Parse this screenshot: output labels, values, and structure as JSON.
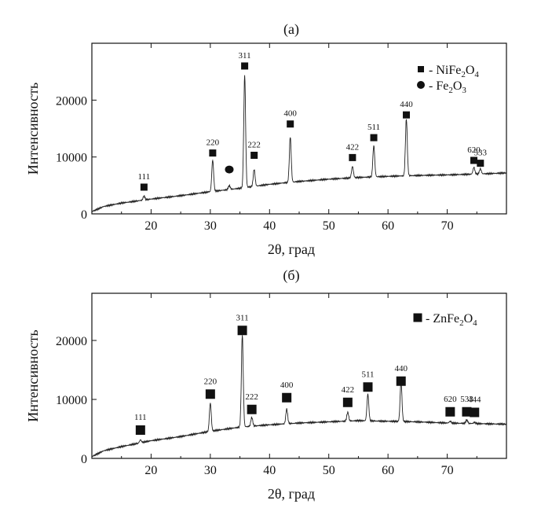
{
  "chart_data": [
    {
      "type": "line",
      "panel_label": "(a)",
      "xlabel": "2θ, град",
      "ylabel": "Интенсивность",
      "xlim": [
        10,
        80
      ],
      "ylim": [
        0,
        30000
      ],
      "x_ticks": [
        20,
        30,
        40,
        50,
        60,
        70
      ],
      "y_ticks": [
        0,
        10000,
        20000
      ],
      "legend": [
        {
          "marker": "square",
          "text": "- NiFe",
          "sub1": "2",
          "text2": "O",
          "sub2": "4"
        },
        {
          "marker": "circle",
          "text": "- Fe",
          "sub1": "2",
          "text2": "O",
          "sub2": "3"
        }
      ],
      "legend_position": "top-right",
      "background": [
        [
          10,
          400
        ],
        [
          12,
          1300
        ],
        [
          15,
          1900
        ],
        [
          20,
          2600
        ],
        [
          25,
          3200
        ],
        [
          30,
          3900
        ],
        [
          35,
          4500
        ],
        [
          40,
          5200
        ],
        [
          45,
          5700
        ],
        [
          50,
          6100
        ],
        [
          55,
          6400
        ],
        [
          60,
          6600
        ],
        [
          65,
          6750
        ],
        [
          70,
          6850
        ],
        [
          75,
          7000
        ],
        [
          80,
          7200
        ]
      ],
      "peaks": [
        {
          "x": 18.8,
          "height": 700,
          "label": "111",
          "marker": "square",
          "marker_y": 4700
        },
        {
          "x": 30.4,
          "height": 5500,
          "label": "220",
          "marker": "square",
          "marker_y": 10700
        },
        {
          "x": 33.2,
          "height": 700,
          "label": "",
          "marker": "circle",
          "marker_y": 7800
        },
        {
          "x": 35.8,
          "height": 19700,
          "label": "311",
          "marker": "square",
          "marker_y": 26000
        },
        {
          "x": 37.4,
          "height": 3000,
          "label": "222",
          "marker": "square",
          "marker_y": 10300
        },
        {
          "x": 43.5,
          "height": 8000,
          "label": "400",
          "marker": "square",
          "marker_y": 15800
        },
        {
          "x": 54.0,
          "height": 2000,
          "label": "422",
          "marker": "square",
          "marker_y": 9900
        },
        {
          "x": 57.6,
          "height": 5500,
          "label": "511",
          "marker": "square",
          "marker_y": 13400
        },
        {
          "x": 63.1,
          "height": 10000,
          "label": "440",
          "marker": "square",
          "marker_y": 17400
        },
        {
          "x": 74.5,
          "height": 1200,
          "label": "620",
          "marker": "square",
          "marker_y": 9400
        },
        {
          "x": 75.6,
          "height": 900,
          "label": "533",
          "marker": "square",
          "marker_y": 8900
        }
      ]
    },
    {
      "type": "line",
      "panel_label": "(б)",
      "xlabel": "2θ, град",
      "ylabel": "Интенсивность",
      "xlim": [
        10,
        80
      ],
      "ylim": [
        0,
        28000
      ],
      "x_ticks": [
        20,
        30,
        40,
        50,
        60,
        70
      ],
      "y_ticks": [
        0,
        10000,
        20000
      ],
      "legend": [
        {
          "marker": "square",
          "text": "- ZnFe",
          "sub1": "2",
          "text2": "O",
          "sub2": "4"
        }
      ],
      "legend_position": "top-right",
      "background": [
        [
          10,
          300
        ],
        [
          12,
          1300
        ],
        [
          15,
          2000
        ],
        [
          18,
          2600
        ],
        [
          20,
          3000
        ],
        [
          25,
          3700
        ],
        [
          30,
          4600
        ],
        [
          35,
          5300
        ],
        [
          40,
          5700
        ],
        [
          45,
          6000
        ],
        [
          50,
          6200
        ],
        [
          55,
          6400
        ],
        [
          60,
          6300
        ],
        [
          65,
          6200
        ],
        [
          70,
          6000
        ],
        [
          75,
          5900
        ],
        [
          80,
          5800
        ]
      ],
      "peaks": [
        {
          "x": 18.2,
          "height": 500,
          "label": "111",
          "marker": "square",
          "marker_y": 4800
        },
        {
          "x": 30.0,
          "height": 4800,
          "label": "220",
          "marker": "square",
          "marker_y": 10900
        },
        {
          "x": 35.4,
          "height": 15600,
          "label": "311",
          "marker": "square",
          "marker_y": 21700
        },
        {
          "x": 37.0,
          "height": 1500,
          "label": "222",
          "marker": "square",
          "marker_y": 8300
        },
        {
          "x": 42.9,
          "height": 2500,
          "label": "400",
          "marker": "square",
          "marker_y": 10300
        },
        {
          "x": 53.2,
          "height": 1500,
          "label": "422",
          "marker": "square",
          "marker_y": 9500
        },
        {
          "x": 56.6,
          "height": 4500,
          "label": "511",
          "marker": "square",
          "marker_y": 12100
        },
        {
          "x": 62.2,
          "height": 6800,
          "label": "440",
          "marker": "square",
          "marker_y": 13100
        },
        {
          "x": 70.5,
          "height": 300,
          "label": "620",
          "marker": "square",
          "marker_y": 7900
        },
        {
          "x": 73.3,
          "height": 600,
          "label": "533",
          "marker": "square",
          "marker_y": 7900
        },
        {
          "x": 74.6,
          "height": 200,
          "label": "444",
          "marker": "square",
          "marker_y": 7800
        }
      ]
    }
  ]
}
